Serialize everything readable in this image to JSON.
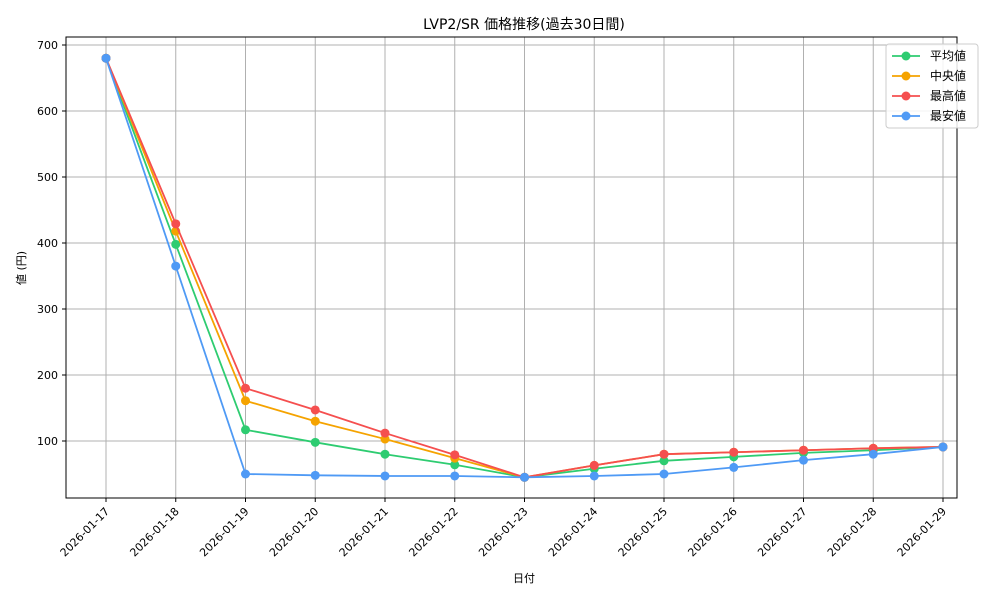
{
  "chart_data": {
    "type": "line",
    "title": "LVP2/SR 価格推移(過去30日間)",
    "xlabel": "日付",
    "ylabel": "値 (円)",
    "ylim": [
      11,
      712
    ],
    "yticks": [
      100,
      200,
      300,
      400,
      500,
      600,
      700
    ],
    "grid": true,
    "legend_position": "upper right",
    "categories": [
      "2026-01-17",
      "2026-01-18",
      "2026-01-19",
      "2026-01-20",
      "2026-01-21",
      "2026-01-22",
      "2026-01-23",
      "2026-01-24",
      "2026-01-25",
      "2026-01-26",
      "2026-01-27",
      "2026-01-28",
      "2026-01-29"
    ],
    "series": [
      {
        "name": "平均値",
        "color": "#2ecc71",
        "values": [
          680,
          398,
          117,
          98,
          80,
          64,
          45,
          58,
          70,
          76,
          82,
          86,
          91
        ]
      },
      {
        "name": "中央値",
        "color": "#f5a300",
        "values": [
          680,
          418,
          161,
          130,
          103,
          74,
          45,
          63,
          80,
          83,
          86,
          89,
          91
        ]
      },
      {
        "name": "最高値",
        "color": "#f54f4f",
        "values": [
          680,
          429,
          180,
          147,
          112,
          79,
          45,
          63,
          80,
          83,
          86,
          89,
          91
        ]
      },
      {
        "name": "最安値",
        "color": "#4f9af5",
        "values": [
          680,
          365,
          50,
          48,
          47,
          47,
          45,
          47,
          50,
          60,
          71,
          80,
          91
        ]
      }
    ]
  }
}
